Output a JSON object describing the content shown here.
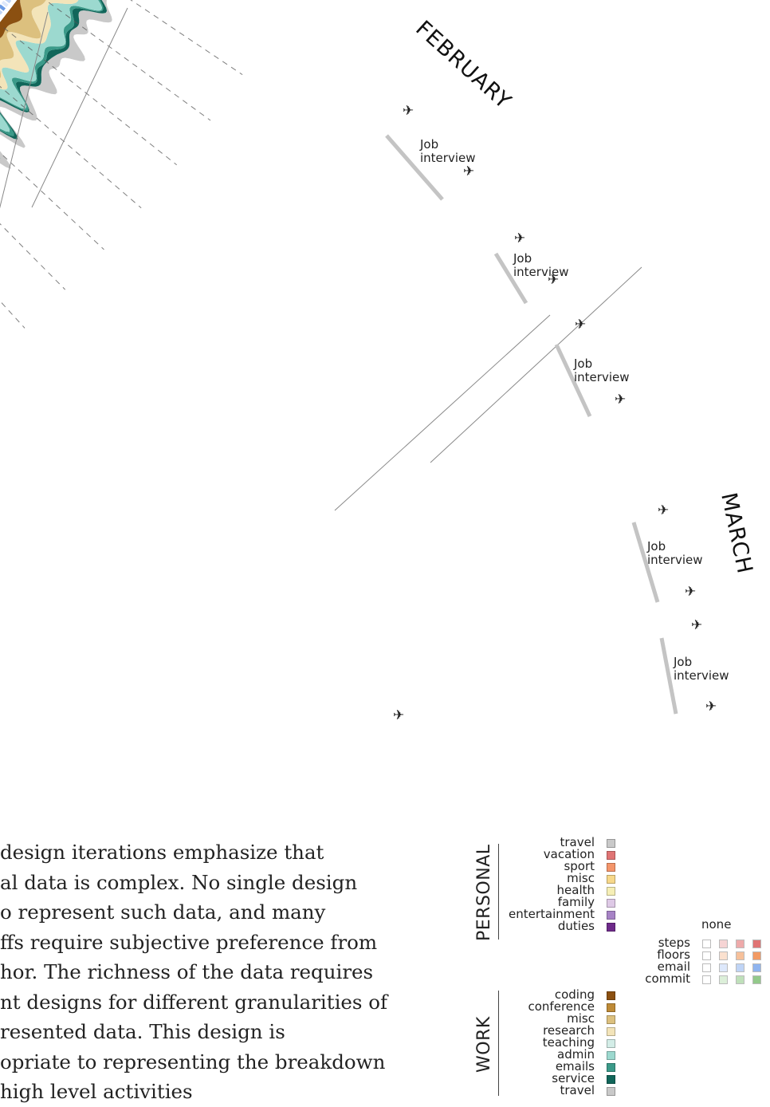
{
  "months": [
    "FEBRUARY",
    "MARCH"
  ],
  "job_label_line1": "Job",
  "job_label_line2": "interview",
  "plane_glyph": "✈",
  "caption_lines": [
    "design iterations emphasize that",
    "al data is complex. No single design",
    "o represent such data, and many",
    "ffs require subjective preference from",
    "hor. The richness of the data requires",
    "nt designs for different granularities of",
    "resented data. This design is",
    "opriate to representing the breakdown",
    "high level activities"
  ],
  "legend": {
    "personal_title": "PERSONAL",
    "work_title": "WORK",
    "personal": [
      {
        "label": "travel",
        "color": "#c9c9c9"
      },
      {
        "label": "vacation",
        "color": "#e07474"
      },
      {
        "label": "sport",
        "color": "#f4956a"
      },
      {
        "label": "misc",
        "color": "#f7d88a"
      },
      {
        "label": "health",
        "color": "#f6efb6"
      },
      {
        "label": "family",
        "color": "#dec9e6"
      },
      {
        "label": "entertainment",
        "color": "#a783c6"
      },
      {
        "label": "duties",
        "color": "#6e2a8a"
      }
    ],
    "work": [
      {
        "label": "coding",
        "color": "#8b5011"
      },
      {
        "label": "conference",
        "color": "#be8a36"
      },
      {
        "label": "misc",
        "color": "#dcc07e"
      },
      {
        "label": "research",
        "color": "#f3e4b9"
      },
      {
        "label": "teaching",
        "color": "#d3ede7"
      },
      {
        "label": "admin",
        "color": "#9cd9cf"
      },
      {
        "label": "emails",
        "color": "#3b9a89"
      },
      {
        "label": "service",
        "color": "#11665a"
      },
      {
        "label": "travel",
        "color": "#c9c9c9"
      }
    ],
    "intensity": {
      "none_label": "none",
      "rows": [
        {
          "label": "steps",
          "colors": [
            "#ffffff",
            "#f6d4d4",
            "#eeaaaa",
            "#e07474",
            "#d65050"
          ]
        },
        {
          "label": "floors",
          "colors": [
            "#ffffff",
            "#fbe1cf",
            "#f6c09a",
            "#f29a63",
            "#ec7a3c"
          ]
        },
        {
          "label": "email",
          "colors": [
            "#ffffff",
            "#dde8fb",
            "#bfd4f6",
            "#8fb4ef",
            "#6c9ce6"
          ]
        },
        {
          "label": "commit",
          "colors": [
            "#ffffff",
            "#dcefd9",
            "#bfe0ba",
            "#93c98b",
            "#6fb465"
          ]
        }
      ]
    }
  },
  "chart_data": {
    "type": "area",
    "title": "",
    "months_shown": [
      "FEBRUARY",
      "MARCH"
    ],
    "annotations": [
      "Job interview",
      "Job interview",
      "Job interview",
      "Job interview",
      "Job interview"
    ],
    "series": [
      {
        "name": "travel",
        "color": "#c9c9c9"
      },
      {
        "name": "admin",
        "color": "#9cd9cf"
      },
      {
        "name": "research",
        "color": "#f3e4b9"
      },
      {
        "name": "misc",
        "color": "#dcc07e"
      },
      {
        "name": "coding",
        "color": "#8b5011"
      },
      {
        "name": "service",
        "color": "#11665a"
      },
      {
        "name": "emails",
        "color": "#3b9a89"
      },
      {
        "name": "entertainment",
        "color": "#a783c6"
      },
      {
        "name": "family",
        "color": "#dec9e6"
      },
      {
        "name": "misc",
        "color": "#f7d88a"
      },
      {
        "name": "sport",
        "color": "#f4956a"
      },
      {
        "name": "duties",
        "color": "#6e2a8a"
      }
    ]
  }
}
